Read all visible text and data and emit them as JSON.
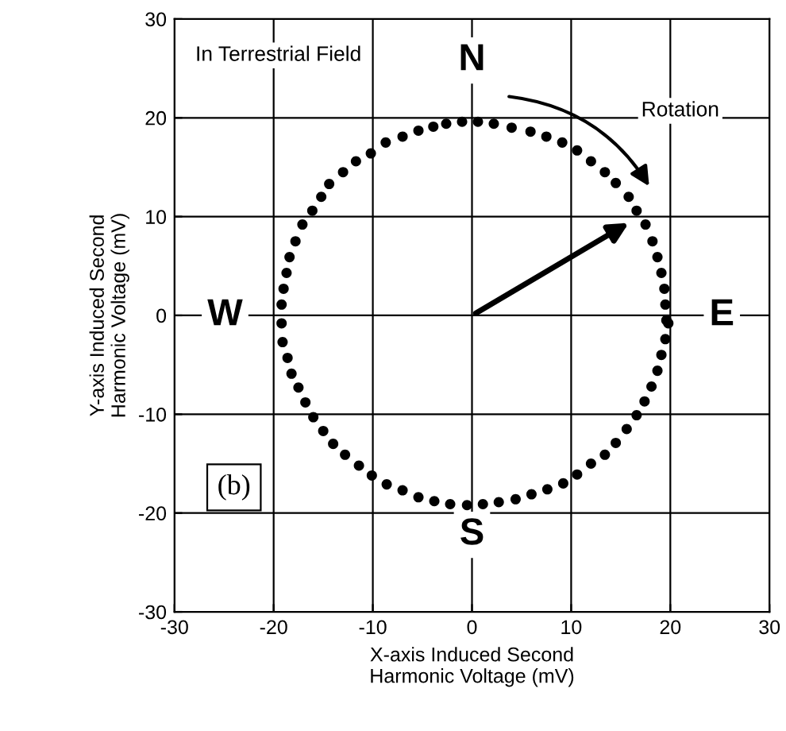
{
  "chart_data": {
    "type": "scatter",
    "xlabel": "X-axis Induced Second\nHarmonic Voltage (mV)",
    "ylabel": "Y-axis Induced Second\nHarmonic Voltage (mV)",
    "x": [
      -1.0,
      -2.6,
      -3.9,
      -5.4,
      -7.0,
      -8.7,
      -10.2,
      -11.7,
      -13.0,
      -14.4,
      -15.2,
      -16.1,
      -17.1,
      -17.8,
      -18.4,
      -18.7,
      -19.0,
      -19.2,
      -19.2,
      -19.1,
      -18.6,
      -18.2,
      -17.5,
      -16.8,
      -16.0,
      -15.0,
      -14.0,
      -12.8,
      -11.4,
      -10.1,
      -8.6,
      -7.0,
      -5.4,
      -3.8,
      -2.2,
      -0.5,
      1.1,
      2.7,
      4.4,
      6.0,
      7.6,
      9.2,
      10.6,
      12.0,
      13.4,
      14.5,
      15.6,
      16.6,
      17.4,
      18.1,
      18.7,
      19.1,
      19.5,
      19.8,
      19.6,
      19.5,
      19.4,
      19.1,
      18.7,
      18.2,
      17.5,
      16.6,
      15.8,
      14.5,
      13.4,
      12.0,
      10.6,
      9.1,
      7.5,
      5.9,
      4.0,
      2.2,
      0.6
    ],
    "values": [
      19.6,
      19.4,
      19.1,
      18.7,
      18.1,
      17.5,
      16.4,
      15.6,
      14.5,
      13.3,
      12.0,
      10.6,
      9.2,
      7.5,
      5.9,
      4.3,
      2.7,
      1.1,
      -0.8,
      -2.7,
      -4.3,
      -5.9,
      -7.3,
      -8.8,
      -10.3,
      -11.7,
      -13.0,
      -14.1,
      -15.2,
      -16.2,
      -17.1,
      -17.7,
      -18.4,
      -18.8,
      -19.1,
      -19.2,
      -19.1,
      -18.9,
      -18.6,
      -18.1,
      -17.6,
      -17.0,
      -16.1,
      -15.0,
      -14.1,
      -12.9,
      -11.5,
      -10.1,
      -8.7,
      -7.2,
      -5.6,
      -4.0,
      -2.4,
      -0.8,
      -0.5,
      1.1,
      2.7,
      4.3,
      5.9,
      7.5,
      9.2,
      10.6,
      12.0,
      13.4,
      14.5,
      15.6,
      16.7,
      17.5,
      18.1,
      18.6,
      19.0,
      19.4,
      19.6
    ],
    "color": "#000000",
    "marker": "circle",
    "xlim": [
      -30,
      30
    ],
    "ylim": [
      -30,
      30
    ],
    "xticks": [
      -30,
      -20,
      -10,
      0,
      10,
      20,
      30
    ],
    "yticks": [
      -30,
      -20,
      -10,
      0,
      10,
      20,
      30
    ],
    "grid": true,
    "annotations": [
      "In Terrestrial Field",
      "N",
      "S",
      "E",
      "W",
      "Rotation",
      "(b)"
    ]
  }
}
